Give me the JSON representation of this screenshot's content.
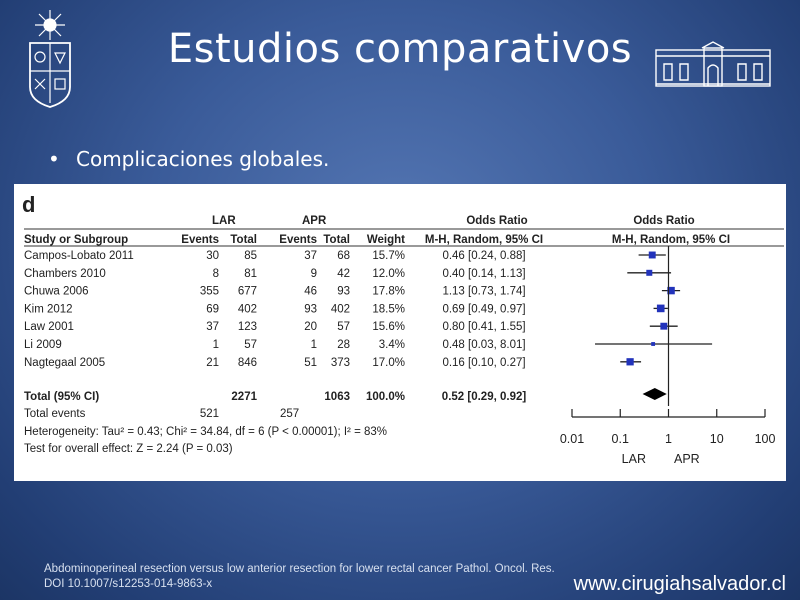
{
  "slide": {
    "title": "Estudios comparativos",
    "bullet": "Complicaciones globales.",
    "citation_line1": "Abdominoperineal resection versus low anterior resection for lower rectal cancer Pathol. Oncol. Res.",
    "citation_line2": "DOI 10.1007/s12253-014-9863-x",
    "website": "www.cirugiahsalvador.cl"
  },
  "forest_plot": {
    "panel_letter": "d",
    "group1_label": "LAR",
    "group2_label": "APR",
    "or_header": "Odds Ratio",
    "or_header_plot": "Odds Ratio",
    "columns": [
      "Study or Subgroup",
      "Events",
      "Total",
      "Events",
      "Total",
      "Weight",
      "M-H, Random, 95% CI",
      "M-H, Random, 95% CI"
    ],
    "studies": [
      {
        "name": "Campos-Lobato 2011",
        "e1": "30",
        "t1": "85",
        "e2": "37",
        "t2": "68",
        "weight": "15.7%",
        "ci": "0.46 [0.24, 0.88]"
      },
      {
        "name": "Chambers 2010",
        "e1": "8",
        "t1": "81",
        "e2": "9",
        "t2": "42",
        "weight": "12.0%",
        "ci": "0.40 [0.14, 1.13]"
      },
      {
        "name": "Chuwa 2006",
        "e1": "355",
        "t1": "677",
        "e2": "46",
        "t2": "93",
        "weight": "17.8%",
        "ci": "1.13 [0.73, 1.74]"
      },
      {
        "name": "Kim 2012",
        "e1": "69",
        "t1": "402",
        "e2": "93",
        "t2": "402",
        "weight": "18.5%",
        "ci": "0.69 [0.49, 0.97]"
      },
      {
        "name": "Law 2001",
        "e1": "37",
        "t1": "123",
        "e2": "20",
        "t2": "57",
        "weight": "15.6%",
        "ci": "0.80 [0.41, 1.55]"
      },
      {
        "name": "Li 2009",
        "e1": "1",
        "t1": "57",
        "e2": "1",
        "t2": "28",
        "weight": "3.4%",
        "ci": "0.48 [0.03, 8.01]"
      },
      {
        "name": "Nagtegaal 2005",
        "e1": "21",
        "t1": "846",
        "e2": "51",
        "t2": "373",
        "weight": "17.0%",
        "ci": "0.16 [0.10, 0.27]"
      }
    ],
    "total": {
      "label": "Total (95% CI)",
      "t1": "2271",
      "t2": "1063",
      "weight": "100.0%",
      "ci": "0.52 [0.29, 0.92]"
    },
    "total_events": {
      "label": "Total events",
      "e1": "521",
      "e2": "257"
    },
    "heterogeneity": "Heterogeneity: Tau² = 0.43; Chi² = 34.84, df = 6 (P < 0.00001); I² = 83%",
    "overall_effect": "Test for overall effect: Z = 2.24 (P = 0.03)",
    "axis_ticks": [
      "0.01",
      "0.1",
      "1",
      "10",
      "100"
    ],
    "axis_left_label": "LAR",
    "axis_right_label": "APR",
    "marker_color": "#2233bb"
  },
  "chart_data": {
    "type": "scatter",
    "scale": "log",
    "xlim": [
      0.01,
      100
    ],
    "categories": [
      "Campos-Lobato 2011",
      "Chambers 2010",
      "Chuwa 2006",
      "Kim 2012",
      "Law 2001",
      "Li 2009",
      "Nagtegaal 2005"
    ],
    "series": [
      {
        "values": [
          0.46,
          0.4,
          1.13,
          0.69,
          0.8,
          0.48,
          0.16
        ],
        "ci_low": [
          0.24,
          0.14,
          0.73,
          0.49,
          0.41,
          0.03,
          0.1
        ],
        "ci_high": [
          0.88,
          1.13,
          1.74,
          0.97,
          1.55,
          8.01,
          0.27
        ],
        "weights": [
          15.7,
          12.0,
          17.8,
          18.5,
          15.6,
          3.4,
          17.0
        ]
      }
    ],
    "pooled": {
      "value": 0.52,
      "ci_low": 0.29,
      "ci_high": 0.92
    }
  }
}
